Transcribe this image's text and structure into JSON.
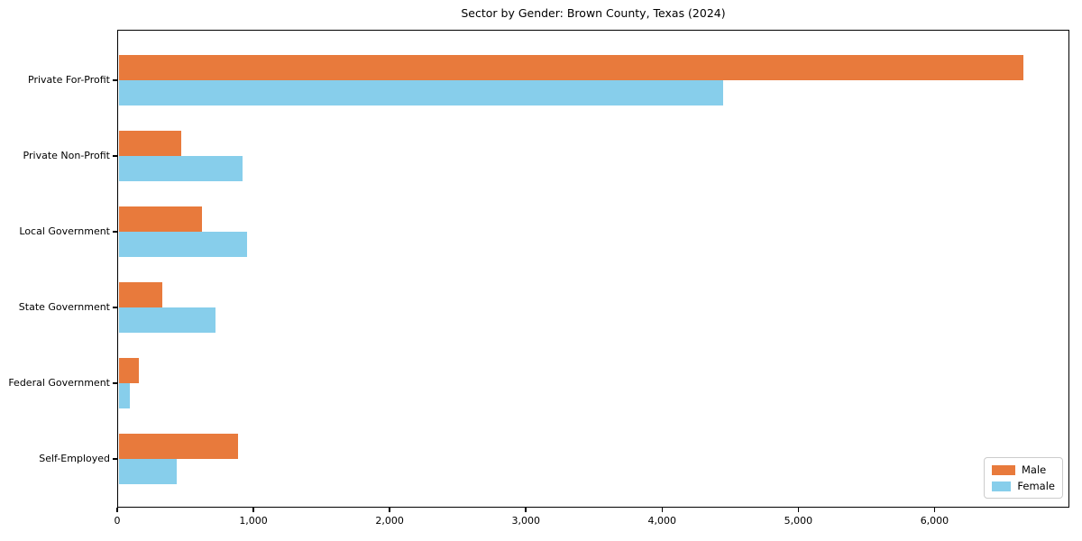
{
  "title": "Sector by Gender: Brown County, Texas (2024)",
  "colors": {
    "male": "#e87a3c",
    "female": "#87ceeb",
    "axis": "#000000",
    "legend_border": "#cccccc",
    "background": "#ffffff"
  },
  "chart_data": {
    "type": "bar",
    "orientation": "horizontal",
    "title": "Sector by Gender: Brown County, Texas (2024)",
    "xlabel": "",
    "ylabel": "",
    "categories": [
      "Private For-Profit",
      "Private Non-Profit",
      "Local Government",
      "State Government",
      "Federal Government",
      "Self-Employed"
    ],
    "series": [
      {
        "name": "Male",
        "color": "#e87a3c",
        "values": [
          6650,
          470,
          620,
          330,
          160,
          890
        ]
      },
      {
        "name": "Female",
        "color": "#87ceeb",
        "values": [
          4450,
          920,
          950,
          720,
          90,
          440
        ]
      }
    ],
    "xlim": [
      0,
      6990
    ],
    "x_ticks": [
      0,
      1000,
      2000,
      3000,
      4000,
      5000,
      6000
    ],
    "x_tick_labels": [
      "0",
      "1,000",
      "2,000",
      "3,000",
      "4,000",
      "5,000",
      "6,000"
    ],
    "grid": false,
    "legend": {
      "position": "lower right",
      "entries": [
        "Male",
        "Female"
      ]
    }
  }
}
